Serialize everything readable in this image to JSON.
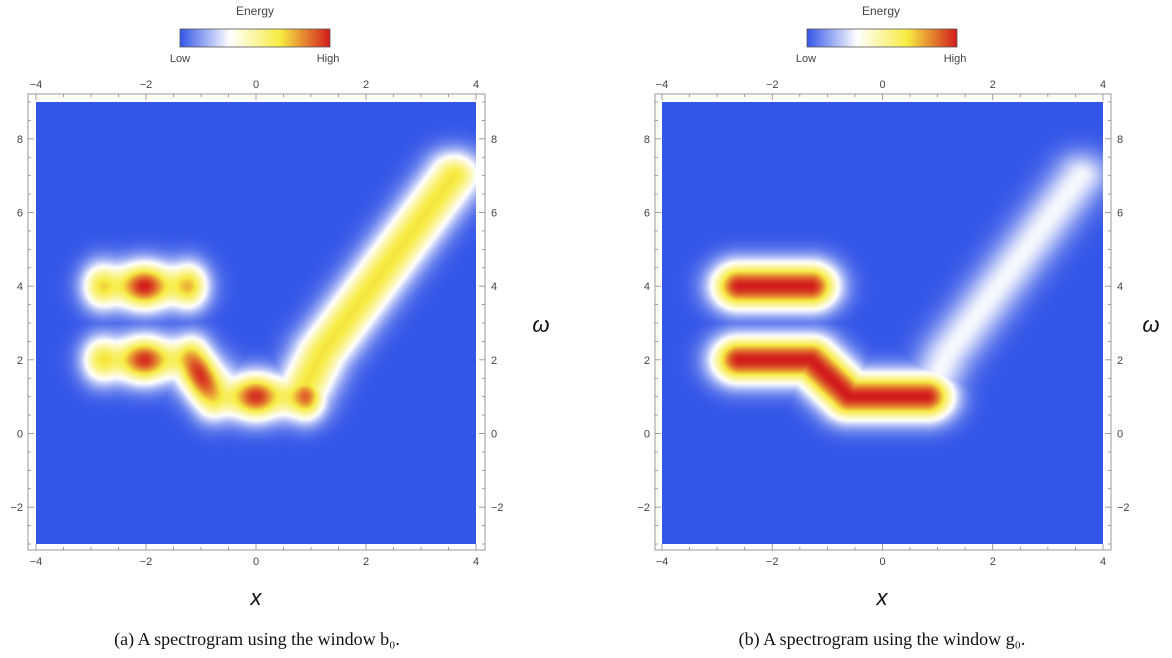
{
  "chart_data": [
    {
      "type": "heatmap",
      "caption": "(a) A spectrogram using the window b₀.",
      "colorbar": {
        "title": "Energy",
        "low_label": "Low",
        "high_label": "High",
        "colors": [
          "#3456e8",
          "#ffffff",
          "#f7ec43",
          "#d21c1c"
        ]
      },
      "xlabel": "x",
      "ylabel": "ω",
      "xlim": [
        -4,
        4
      ],
      "ylim": [
        -3,
        9
      ],
      "xticks": [
        "-4",
        "-2",
        "0",
        "2",
        "4"
      ],
      "yticks": [
        "-2",
        "0",
        "2",
        "4",
        "6",
        "8"
      ],
      "ridges": [
        {
          "points": [
            [
              -2.6,
              4.0
            ],
            [
              -1.4,
              4.0
            ]
          ],
          "peak": 1.0,
          "ripple": 0.18
        },
        {
          "points": [
            [
              -2.6,
              2.0
            ],
            [
              -1.3,
              2.0
            ],
            [
              -0.6,
              1.0
            ],
            [
              0.8,
              1.0
            ]
          ],
          "peak": 0.97,
          "ripple": 0.18
        },
        {
          "points": [
            [
              0.8,
              1.0
            ],
            [
              1.2,
              2.2
            ],
            [
              3.6,
              7.0
            ]
          ],
          "peak": 0.68,
          "ripple": 0
        }
      ]
    },
    {
      "type": "heatmap",
      "caption": "(b) A spectrogram using the window g₀.",
      "colorbar": {
        "title": "Energy",
        "low_label": "Low",
        "high_label": "High",
        "colors": [
          "#3456e8",
          "#ffffff",
          "#f7ec43",
          "#d21c1c"
        ]
      },
      "xlabel": "x",
      "ylabel": "ω",
      "xlim": [
        -4,
        4
      ],
      "ylim": [
        -3,
        9
      ],
      "xticks": [
        "-4",
        "-2",
        "0",
        "2",
        "4"
      ],
      "yticks": [
        "-2",
        "0",
        "2",
        "4",
        "6",
        "8"
      ],
      "ridges": [
        {
          "points": [
            [
              -2.6,
              4.0
            ],
            [
              -1.3,
              4.0
            ]
          ],
          "peak": 1.0,
          "ripple": 0
        },
        {
          "points": [
            [
              -2.6,
              2.0
            ],
            [
              -1.3,
              2.0
            ],
            [
              -0.6,
              1.0
            ],
            [
              0.8,
              1.0
            ]
          ],
          "peak": 1.0,
          "ripple": 0
        },
        {
          "points": [
            [
              0.8,
              1.0
            ],
            [
              1.2,
              2.2
            ],
            [
              3.6,
              7.0
            ]
          ],
          "peak": 0.32,
          "ripple": 0
        }
      ]
    }
  ]
}
